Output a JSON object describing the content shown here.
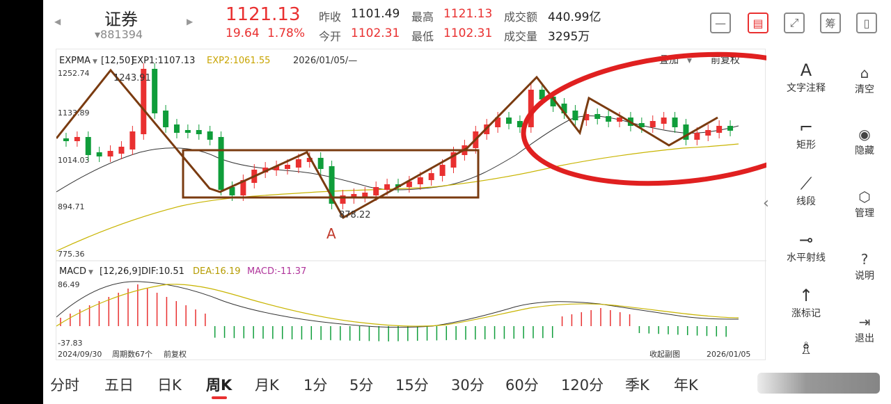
{
  "header": {
    "name": "证券",
    "code": "▾881394",
    "price": "1121.13",
    "change": "19.64",
    "change_pct": "1.78%",
    "prev_close_label": "昨收",
    "prev_close": "1101.49",
    "open_label": "今开",
    "open": "1102.31",
    "high_label": "最高",
    "high": "1121.13",
    "low_label": "最低",
    "low": "1102.31",
    "amount_label": "成交额",
    "amount": "440.99亿",
    "volume_label": "成交量",
    "volume": "3295万",
    "icons": [
      "minimize-icon",
      "draw-icon",
      "expand-icon",
      "chou-icon",
      "device-icon"
    ],
    "chou_label": "筹"
  },
  "main_chart": {
    "indicator": "EXPMA",
    "params": "[12,50]",
    "exp1": "EXP1:1107.13",
    "exp2": "EXP2:1061.55",
    "date": "2026/01/05/—",
    "overlay": "叠加",
    "adjust": "前复权",
    "y_labels": [
      "1252.74",
      "1133.89",
      "1014.03",
      "894.71",
      "775.36"
    ],
    "high_mark": "1243.91",
    "low_mark": "878.22",
    "annotation_a": "A"
  },
  "macd": {
    "indicator": "MACD",
    "params": "[12,26,9]",
    "dif": "DIF:10.51",
    "dea": "DEA:16.19",
    "macd": "MACD:-11.37",
    "y_top": "86.49",
    "y_bottom": "-37.83",
    "start_date": "2024/09/30",
    "period_count": "周期数67个",
    "adjust": "前复权",
    "collapse": "收起副图",
    "end_date": "2026/01/05"
  },
  "tools": [
    {
      "icon": "text-icon",
      "glyph": "A",
      "label": "文字注释"
    },
    {
      "icon": "rectangle-icon",
      "glyph": "⌐",
      "label": "矩形"
    },
    {
      "icon": "line-segment-icon",
      "glyph": "⟋",
      "label": "线段"
    },
    {
      "icon": "horizontal-ray-icon",
      "glyph": "⊸",
      "label": "水平射线"
    },
    {
      "icon": "rise-mark-icon",
      "glyph": "↑",
      "label": "涨标记"
    },
    {
      "icon": "more-tool-icon",
      "glyph": "♗",
      "label": ""
    }
  ],
  "right_tools": [
    {
      "icon": "clear-icon",
      "glyph": "⌂",
      "label": "清空"
    },
    {
      "icon": "hide-icon",
      "glyph": "◉",
      "label": "隐藏"
    },
    {
      "icon": "manage-icon",
      "glyph": "⬡",
      "label": "管理"
    },
    {
      "icon": "help-icon",
      "glyph": "?",
      "label": "说明"
    },
    {
      "icon": "exit-icon",
      "glyph": "⇥",
      "label": "退出"
    }
  ],
  "tabs": [
    "分时",
    "五日",
    "日K",
    "周K",
    "月K",
    "1分",
    "5分",
    "15分",
    "30分",
    "60分",
    "120分",
    "季K",
    "年K"
  ],
  "active_tab": "周K",
  "colors": {
    "up": "#e93030",
    "down": "#0f9d3a",
    "exp1": "#333333",
    "exp2": "#c8b400",
    "draw": "#7a3b10",
    "circle": "#e02020"
  }
}
